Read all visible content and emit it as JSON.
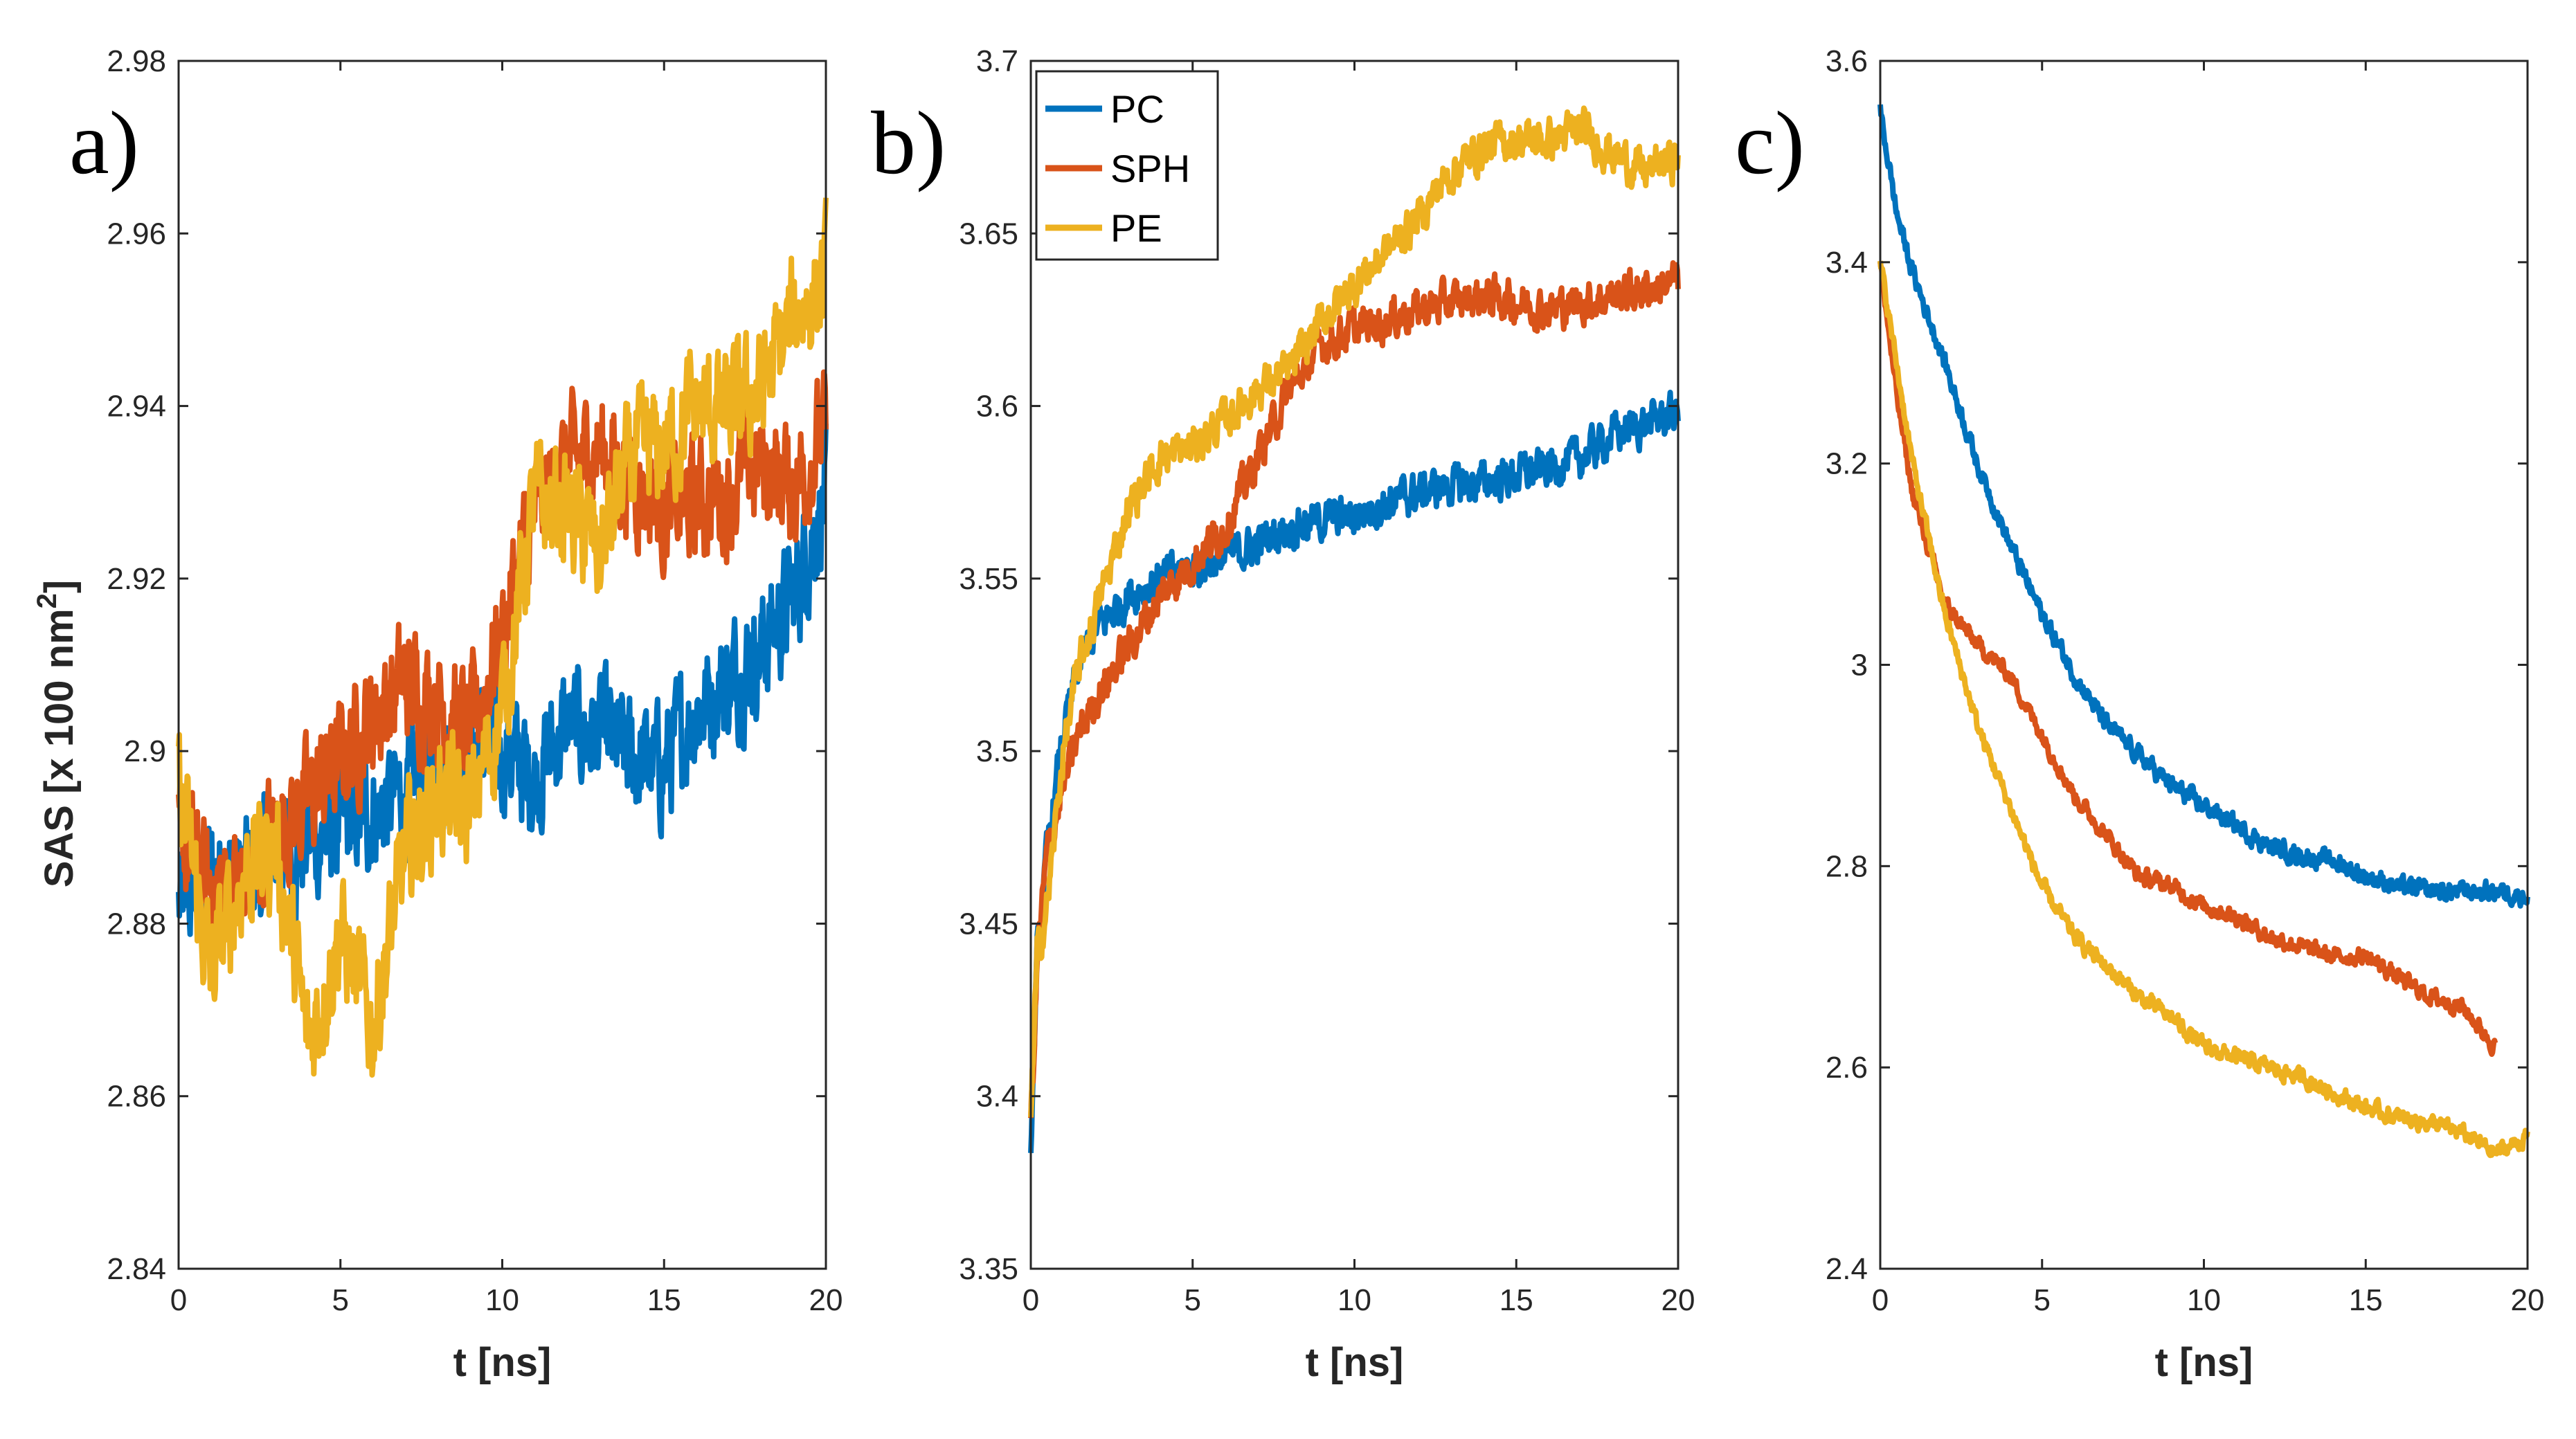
{
  "colors": {
    "PC": "#0072BD",
    "SPH": "#D95319",
    "PE": "#EDB120",
    "axis": "#262626"
  },
  "legend": {
    "entries": [
      "PC",
      "SPH",
      "PE"
    ],
    "placement": "top-left of panel b"
  },
  "chart_data": [
    {
      "type": "line",
      "panel_label": "a)",
      "xlabel": "t [ns]",
      "ylabel_main": "SAS [x 100 nm",
      "ylabel_sup": "2",
      "ylabel_close": "]",
      "xlim": [
        0,
        20
      ],
      "ylim": [
        2.84,
        2.98
      ],
      "xticks": [
        0,
        5,
        10,
        15,
        20
      ],
      "xtick_labels": [
        "0",
        "5",
        "10",
        "15",
        "20"
      ],
      "yticks": [
        2.84,
        2.86,
        2.88,
        2.9,
        2.92,
        2.94,
        2.96,
        2.98
      ],
      "ytick_labels": [
        "2.84",
        "2.86",
        "2.88",
        "2.9",
        "2.92",
        "2.94",
        "2.96",
        "2.98"
      ],
      "series": [
        {
          "name": "PC",
          "x": [
            0,
            1,
            2,
            3,
            4,
            5,
            6,
            7,
            8,
            9,
            10,
            11,
            12,
            13,
            14,
            15,
            16,
            17,
            18,
            19,
            20
          ],
          "values": [
            2.882,
            2.886,
            2.885,
            2.888,
            2.889,
            2.891,
            2.893,
            2.895,
            2.899,
            2.901,
            2.9,
            2.897,
            2.903,
            2.902,
            2.899,
            2.898,
            2.905,
            2.908,
            2.912,
            2.918,
            2.93
          ],
          "noise": 0.006
        },
        {
          "name": "SPH",
          "x": [
            0,
            1,
            2,
            3,
            4,
            5,
            6,
            7,
            8,
            9,
            10,
            11,
            12,
            13,
            14,
            15,
            16,
            17,
            18,
            19,
            20
          ],
          "values": [
            2.89,
            2.884,
            2.885,
            2.891,
            2.894,
            2.899,
            2.904,
            2.908,
            2.906,
            2.902,
            2.914,
            2.928,
            2.933,
            2.935,
            2.932,
            2.928,
            2.929,
            2.93,
            2.933,
            2.931,
            2.937
          ],
          "noise": 0.006
        },
        {
          "name": "PE",
          "x": [
            0,
            1,
            2,
            3,
            4,
            5,
            6,
            7,
            8,
            9,
            10,
            11,
            12,
            13,
            14,
            15,
            16,
            17,
            18,
            19,
            20
          ],
          "values": [
            2.896,
            2.874,
            2.886,
            2.889,
            2.866,
            2.879,
            2.868,
            2.888,
            2.895,
            2.893,
            2.905,
            2.929,
            2.928,
            2.923,
            2.934,
            2.935,
            2.94,
            2.939,
            2.942,
            2.95,
            2.955
          ],
          "noise": 0.006
        }
      ]
    },
    {
      "type": "line",
      "panel_label": "b)",
      "xlabel": "t [ns]",
      "xlim": [
        0,
        20
      ],
      "ylim": [
        3.35,
        3.7
      ],
      "xticks": [
        0,
        5,
        10,
        15,
        20
      ],
      "xtick_labels": [
        "0",
        "5",
        "10",
        "15",
        "20"
      ],
      "yticks": [
        3.35,
        3.4,
        3.45,
        3.5,
        3.55,
        3.6,
        3.65,
        3.7
      ],
      "ytick_labels": [
        "3.35",
        "3.4",
        "3.45",
        "3.5",
        "3.55",
        "3.6",
        "3.65",
        "3.7"
      ],
      "series": [
        {
          "name": "PC",
          "x": [
            0,
            0.2,
            0.5,
            1,
            1.5,
            2,
            3,
            4,
            5,
            6,
            7,
            8,
            9,
            10,
            11,
            12,
            13,
            14,
            15,
            16,
            17,
            18,
            19,
            20
          ],
          "values": [
            3.388,
            3.44,
            3.47,
            3.505,
            3.525,
            3.535,
            3.545,
            3.55,
            3.553,
            3.556,
            3.56,
            3.565,
            3.567,
            3.568,
            3.572,
            3.575,
            3.577,
            3.578,
            3.58,
            3.582,
            3.585,
            3.592,
            3.595,
            3.598
          ],
          "noise": 0.005
        },
        {
          "name": "SPH",
          "x": [
            0,
            0.2,
            0.5,
            1,
            1.5,
            2,
            3,
            4,
            5,
            6,
            7,
            8,
            9,
            10,
            11,
            12,
            13,
            14,
            15,
            16,
            17,
            18,
            19,
            20
          ],
          "values": [
            3.39,
            3.44,
            3.47,
            3.49,
            3.505,
            3.515,
            3.53,
            3.545,
            3.555,
            3.565,
            3.585,
            3.605,
            3.618,
            3.622,
            3.625,
            3.628,
            3.63,
            3.632,
            3.63,
            3.628,
            3.63,
            3.632,
            3.634,
            3.636
          ],
          "noise": 0.005
        },
        {
          "name": "PE",
          "x": [
            0,
            0.2,
            0.5,
            1,
            1.5,
            2,
            3,
            4,
            5,
            6,
            7,
            8,
            9,
            10,
            11,
            12,
            13,
            14,
            15,
            16,
            17,
            18,
            19,
            20
          ],
          "values": [
            3.395,
            3.44,
            3.455,
            3.5,
            3.525,
            3.54,
            3.57,
            3.585,
            3.588,
            3.596,
            3.605,
            3.61,
            3.625,
            3.635,
            3.645,
            3.655,
            3.668,
            3.675,
            3.677,
            3.677,
            3.68,
            3.673,
            3.668,
            3.672
          ],
          "noise": 0.005
        }
      ]
    },
    {
      "type": "line",
      "panel_label": "c)",
      "xlabel": "t [ns]",
      "xlim": [
        0,
        20
      ],
      "ylim": [
        2.4,
        3.6
      ],
      "xticks": [
        0,
        5,
        10,
        15,
        20
      ],
      "xtick_labels": [
        "0",
        "5",
        "10",
        "15",
        "20"
      ],
      "yticks": [
        2.4,
        2.6,
        2.8,
        3.0,
        3.2,
        3.4,
        3.6
      ],
      "ytick_labels": [
        "2.4",
        "2.6",
        "2.8",
        "3",
        "3.2",
        "3.4",
        "3.6"
      ],
      "series": [
        {
          "name": "PC",
          "x": [
            0,
            0.5,
            1,
            2,
            3,
            4,
            5,
            6,
            7,
            8,
            9,
            10,
            11,
            12,
            13,
            14,
            15,
            16,
            17,
            18,
            19,
            20
          ],
          "values": [
            3.55,
            3.45,
            3.39,
            3.3,
            3.2,
            3.12,
            3.05,
            2.99,
            2.94,
            2.91,
            2.88,
            2.86,
            2.84,
            2.82,
            2.81,
            2.805,
            2.79,
            2.78,
            2.775,
            2.775,
            2.775,
            2.77
          ],
          "noise": 0.008
        },
        {
          "name": "SPH",
          "x": [
            0,
            0.5,
            1,
            2,
            3,
            4,
            5,
            6,
            7,
            8,
            9,
            10,
            11,
            12,
            13,
            14,
            15,
            16,
            17,
            18,
            19
          ],
          "values": [
            3.4,
            3.27,
            3.17,
            3.06,
            3.02,
            2.99,
            2.93,
            2.87,
            2.83,
            2.79,
            2.78,
            2.76,
            2.75,
            2.73,
            2.72,
            2.71,
            2.71,
            2.69,
            2.67,
            2.66,
            2.62
          ],
          "noise": 0.007
        },
        {
          "name": "PE",
          "x": [
            0,
            0.5,
            1,
            2,
            3,
            4,
            5,
            6,
            7,
            8,
            9,
            10,
            11,
            12,
            13,
            14,
            15,
            16,
            17,
            18,
            19,
            20
          ],
          "values": [
            3.4,
            3.3,
            3.2,
            3.05,
            2.94,
            2.86,
            2.78,
            2.73,
            2.7,
            2.67,
            2.65,
            2.62,
            2.61,
            2.6,
            2.59,
            2.575,
            2.56,
            2.55,
            2.545,
            2.535,
            2.515,
            2.53
          ],
          "noise": 0.007
        }
      ]
    }
  ]
}
